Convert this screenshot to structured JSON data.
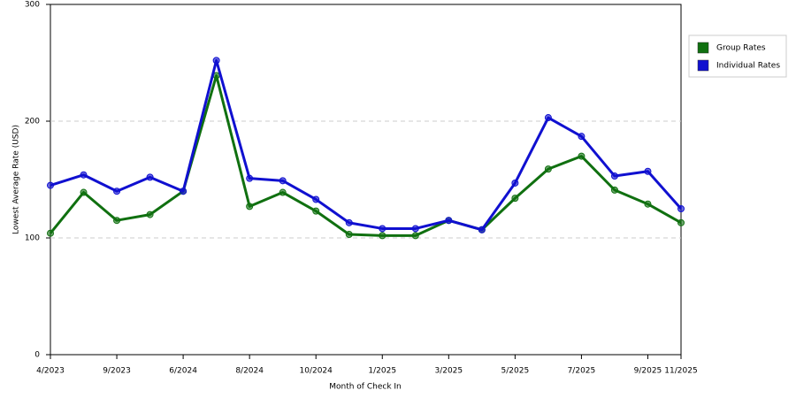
{
  "chart_data": {
    "type": "line",
    "x_label": "Month of Check In",
    "y_label": "Lowest Average Rate (USD)",
    "categories": [
      "4/2023",
      null,
      "9/2023",
      null,
      "6/2024",
      null,
      "8/2024",
      null,
      "10/2024",
      null,
      "1/2025",
      null,
      "3/2025",
      null,
      "5/2025",
      null,
      "7/2025",
      null,
      "9/2025",
      "11/2025"
    ],
    "series": [
      {
        "name": "Group Rates",
        "color": "#107010",
        "values": [
          104,
          139,
          115,
          120,
          140,
          239,
          127,
          139,
          123,
          103,
          102,
          102,
          115,
          107,
          134,
          159,
          170,
          141,
          129,
          113
        ]
      },
      {
        "name": "Individual Rates",
        "color": "#1010d0",
        "values": [
          145,
          154,
          140,
          152,
          140,
          252,
          151,
          149,
          133,
          113,
          108,
          108,
          115,
          107,
          147,
          203,
          187,
          153,
          157,
          125
        ]
      }
    ],
    "ylim": [
      0,
      300
    ],
    "yticks": [
      0,
      100,
      200,
      300
    ],
    "grid": true,
    "legend": "right"
  }
}
